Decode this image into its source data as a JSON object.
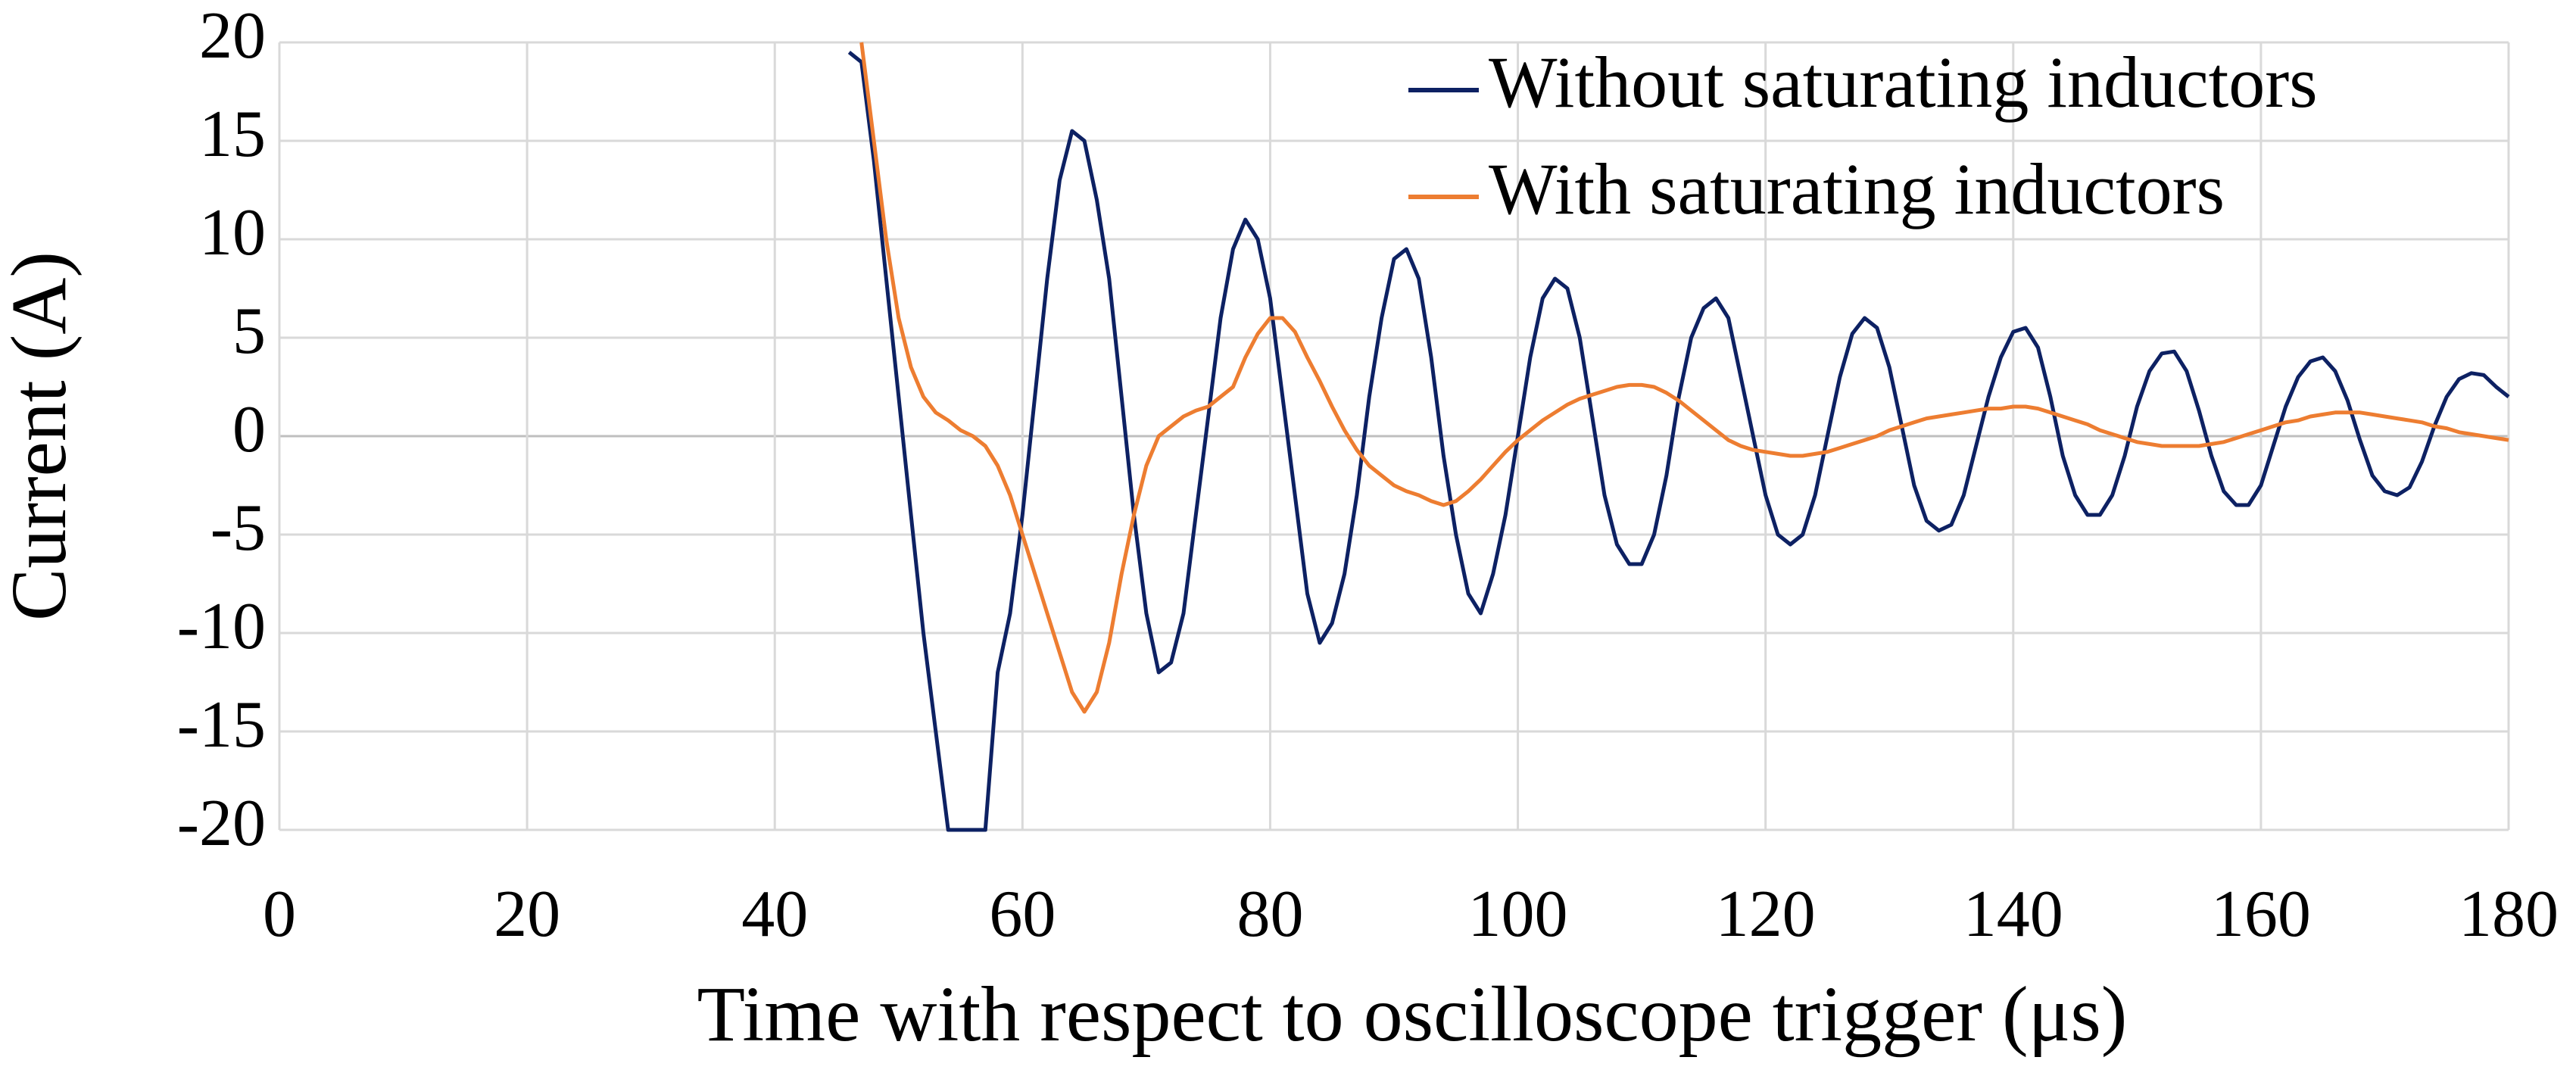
{
  "chart_data": {
    "type": "line",
    "x_label": "Time with respect to oscilloscope trigger (μs)",
    "y_label": "Current (A)",
    "xlim": [
      0,
      180
    ],
    "xticks": [
      0,
      20,
      40,
      60,
      80,
      100,
      120,
      140,
      160,
      180
    ],
    "ylim": [
      -20,
      20
    ],
    "yticks": [
      -20,
      -15,
      -10,
      -5,
      0,
      5,
      10,
      15,
      20
    ],
    "grid": true,
    "legend": "upper right",
    "x": [
      46,
      47,
      48,
      49,
      50,
      51,
      52,
      53,
      54,
      55,
      56,
      57,
      58,
      59,
      60,
      61,
      62,
      63,
      64,
      65,
      66,
      67,
      68,
      69,
      70,
      71,
      72,
      73,
      74,
      75,
      76,
      77,
      78,
      79,
      80,
      81,
      82,
      83,
      84,
      85,
      86,
      87,
      88,
      89,
      90,
      91,
      92,
      93,
      94,
      95,
      96,
      97,
      98,
      99,
      100,
      101,
      102,
      103,
      104,
      105,
      106,
      107,
      108,
      109,
      110,
      111,
      112,
      113,
      114,
      115,
      116,
      117,
      118,
      119,
      120,
      121,
      122,
      123,
      124,
      125,
      126,
      127,
      128,
      129,
      130,
      131,
      132,
      133,
      134,
      135,
      136,
      137,
      138,
      139,
      140,
      141,
      142,
      143,
      144,
      145,
      146,
      147,
      148,
      149,
      150,
      151,
      152,
      153,
      154,
      155,
      156,
      157,
      158,
      159,
      160,
      161,
      162,
      163,
      164,
      165,
      166,
      167,
      168,
      169,
      170,
      171,
      172,
      173,
      174,
      175,
      176,
      177,
      178,
      179,
      180
    ],
    "series": [
      {
        "name": "Without saturating inductors",
        "color": "#0d2163",
        "values": [
          19.5,
          19,
          14,
          8,
          2,
          -4,
          -10,
          -15,
          -20,
          -20,
          -20,
          -20,
          -12,
          -9,
          -4,
          2,
          8,
          13,
          15.5,
          15,
          12,
          8,
          2,
          -4,
          -9,
          -12,
          -11.5,
          -9,
          -4,
          1,
          6,
          9.5,
          11,
          10,
          7,
          2,
          -3,
          -8,
          -10.5,
          -9.5,
          -7,
          -3,
          2,
          6,
          9,
          9.5,
          8,
          4,
          -1,
          -5,
          -8,
          -9,
          -7,
          -4,
          0,
          4,
          7,
          8,
          7.5,
          5,
          1,
          -3,
          -5.5,
          -6.5,
          -6.5,
          -5,
          -2,
          2,
          5,
          6.5,
          7,
          6,
          3,
          0,
          -3,
          -5,
          -5.5,
          -5,
          -3,
          0,
          3,
          5.2,
          6,
          5.5,
          3.5,
          0.5,
          -2.5,
          -4.3,
          -4.8,
          -4.5,
          -3,
          -0.5,
          2,
          4,
          5.3,
          5.5,
          4.5,
          2,
          -1,
          -3,
          -4,
          -4,
          -3,
          -1,
          1.5,
          3.3,
          4.2,
          4.3,
          3.3,
          1.3,
          -1,
          -2.8,
          -3.5,
          -3.5,
          -2.5,
          -0.5,
          1.5,
          3,
          3.8,
          4,
          3.3,
          1.8,
          -0.2,
          -2,
          -2.8,
          -3,
          -2.6,
          -1.3,
          0.5,
          2,
          2.9,
          3.2,
          3.1,
          2.5,
          2
        ]
      },
      {
        "name": "With saturating inductors",
        "color": "#ed7d31",
        "values": [
          null,
          20,
          15,
          10,
          6,
          3.5,
          2,
          1.2,
          0.8,
          0.3,
          0,
          -0.5,
          -1.5,
          -3,
          -5,
          -7,
          -9,
          -11,
          -13,
          -14,
          -13,
          -10.5,
          -7,
          -4,
          -1.5,
          0,
          0.5,
          1,
          1.3,
          1.5,
          2,
          2.5,
          4,
          5.2,
          6,
          6,
          5.3,
          4,
          2.8,
          1.5,
          0.3,
          -0.7,
          -1.5,
          -2,
          -2.5,
          -2.8,
          -3,
          -3.3,
          -3.5,
          -3.3,
          -2.8,
          -2.2,
          -1.5,
          -0.8,
          -0.2,
          0.3,
          0.8,
          1.2,
          1.6,
          1.9,
          2.1,
          2.3,
          2.5,
          2.6,
          2.6,
          2.5,
          2.2,
          1.8,
          1.3,
          0.8,
          0.3,
          -0.2,
          -0.5,
          -0.7,
          -0.8,
          -0.9,
          -1,
          -1,
          -0.9,
          -0.8,
          -0.6,
          -0.4,
          -0.2,
          0,
          0.3,
          0.5,
          0.7,
          0.9,
          1,
          1.1,
          1.2,
          1.3,
          1.4,
          1.4,
          1.5,
          1.5,
          1.4,
          1.2,
          1,
          0.8,
          0.6,
          0.3,
          0.1,
          -0.1,
          -0.3,
          -0.4,
          -0.5,
          -0.5,
          -0.5,
          -0.5,
          -0.4,
          -0.3,
          -0.1,
          0.1,
          0.3,
          0.5,
          0.7,
          0.8,
          1,
          1.1,
          1.2,
          1.2,
          1.2,
          1.1,
          1,
          0.9,
          0.8,
          0.7,
          0.5,
          0.4,
          0.2,
          0.1,
          0,
          -0.1,
          -0.2
        ]
      }
    ]
  }
}
